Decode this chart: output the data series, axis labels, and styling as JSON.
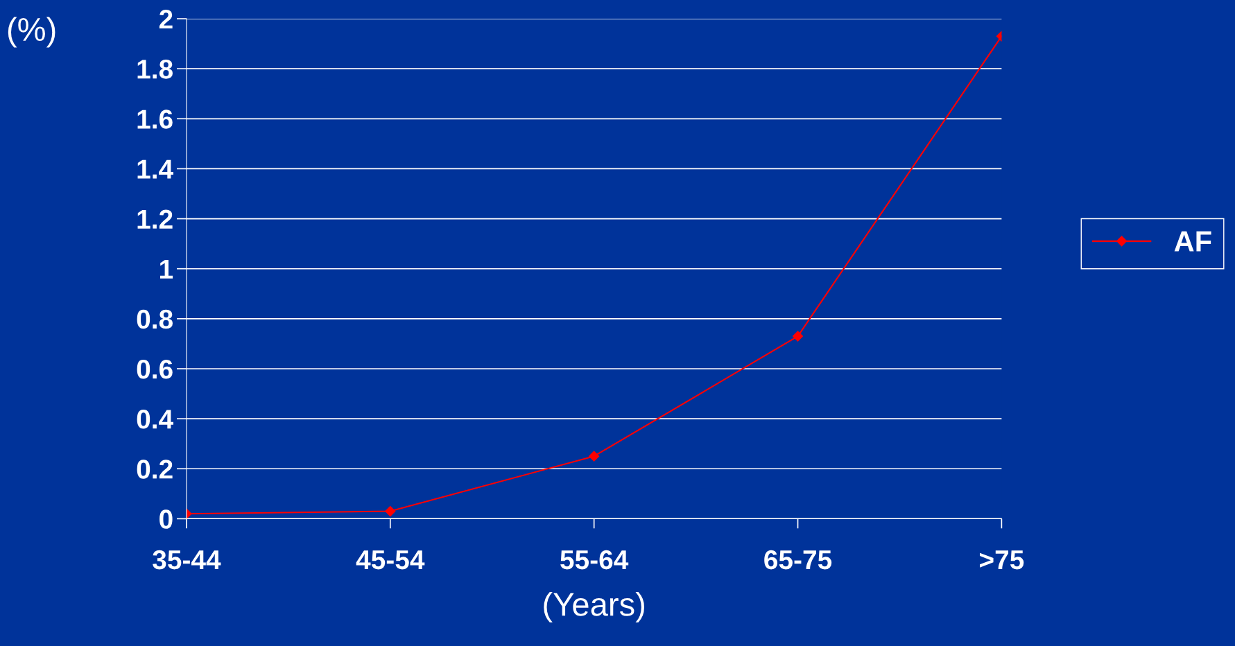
{
  "chart_data": {
    "type": "line",
    "xlabel": "(Years)",
    "ylabel": "(%)",
    "categories": [
      "35-44",
      "45-54",
      "55-64",
      "65-75",
      ">75"
    ],
    "series": [
      {
        "name": "AF",
        "color": "#ff0000",
        "values": [
          0.02,
          0.03,
          0.25,
          0.73,
          1.93
        ]
      }
    ],
    "ylim": [
      0,
      2
    ],
    "yticks": [
      0,
      0.2,
      0.4,
      0.6,
      0.8,
      1,
      1.2,
      1.4,
      1.6,
      1.8,
      2
    ],
    "grid": "y",
    "legend": "right",
    "marker": "diamond",
    "line_style": "solid"
  }
}
